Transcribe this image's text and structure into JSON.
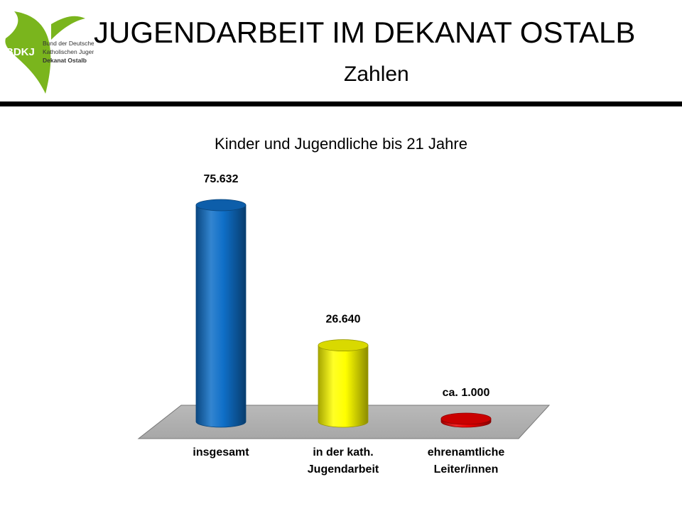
{
  "header": {
    "title": "JUGENDARBEIT IM DEKANAT OSTALB",
    "subtitle": "Zahlen"
  },
  "logo": {
    "abbr": "BDKJ",
    "line1": "Bund der Deutschen",
    "line2": "Katholischen Jugend",
    "line3": "Dekanat Ostalb",
    "color": "#7ab51d"
  },
  "chart_data": {
    "type": "bar",
    "title": "Kinder und Jugendliche bis 21 Jahre",
    "categories": [
      [
        "insgesamt"
      ],
      [
        "in der kath.",
        "Jugendarbeit"
      ],
      [
        "ehrenamtliche",
        "Leiter/innen"
      ]
    ],
    "values": [
      75632,
      26640,
      1000
    ],
    "data_labels": [
      "75.632",
      "26.640",
      "ca. 1.000"
    ],
    "colors": [
      "#0f6fc8",
      "#ffff00",
      "#ee0000"
    ],
    "ylim": [
      0,
      75632
    ],
    "grid": false,
    "legend": "none",
    "style": "3d-cylinder"
  }
}
